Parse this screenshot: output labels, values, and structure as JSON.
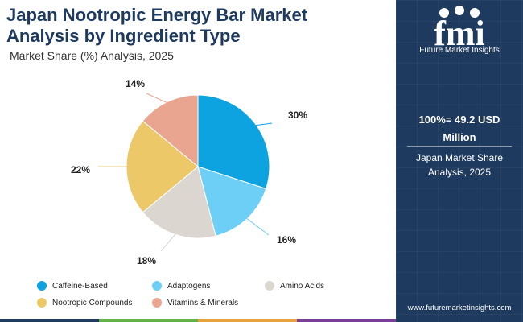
{
  "header": {
    "title_line1": "Japan Nootropic Energy Bar Market",
    "title_line2": "Analysis by Ingredient Type",
    "subtitle": "Market Share (%) Analysis, 2025"
  },
  "side_panel": {
    "logo_text": "fmi",
    "logo_subtitle": "Future Market Insights",
    "total_line1": "100%= 49.2 USD",
    "total_line2": "Million",
    "share_line1": "Japan Market Share",
    "share_line2": "Analysis, 2025",
    "url": "www.futuremarketinsights.com"
  },
  "colors": {
    "navy": "#1e3a5e",
    "bottom_bar": [
      "#1e3a5e",
      "#62b24a",
      "#e8a33d",
      "#7b3f9a"
    ]
  },
  "chart_data": {
    "type": "pie",
    "title": "Japan Nootropic Energy Bar Market Analysis by Ingredient Type",
    "subtitle": "Market Share (%) Analysis, 2025",
    "unit": "%",
    "legend_position": "bottom",
    "slices": [
      {
        "name": "Caffeine-Based",
        "value": 30,
        "label": "30%",
        "color": "#0da2e0"
      },
      {
        "name": "Adaptogens",
        "value": 16,
        "label": "16%",
        "color": "#6dcff6"
      },
      {
        "name": "Amino Acids",
        "value": 18,
        "label": "18%",
        "color": "#dcd6d1"
      },
      {
        "name": "Nootropic Compounds",
        "value": 22,
        "label": "22%",
        "color": "#edc869"
      },
      {
        "name": "Vitamins & Minerals",
        "value": 14,
        "label": "14%",
        "color": "#e9a590"
      }
    ]
  }
}
